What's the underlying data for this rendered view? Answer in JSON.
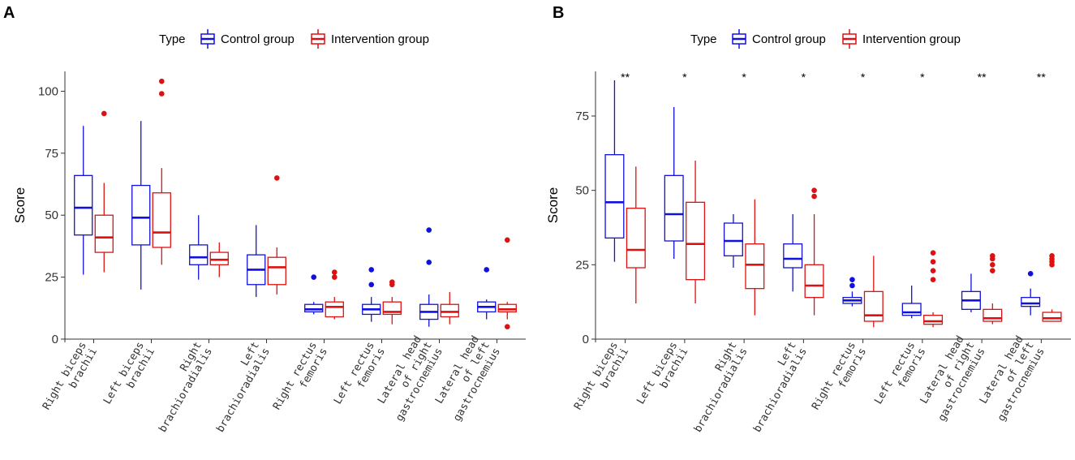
{
  "colors": {
    "control": "#1111dd",
    "intervention": "#dd1111",
    "axis": "#333333"
  },
  "legend": {
    "title": "Type",
    "items": [
      "Control group",
      "Intervention group"
    ]
  },
  "chart_data": [
    {
      "panel": "A",
      "type": "boxplot",
      "ylabel": "Score",
      "ylim": [
        0,
        108
      ],
      "yticks": [
        0,
        25,
        50,
        75,
        100
      ],
      "categories": [
        [
          "Right biceps",
          "brachii"
        ],
        [
          "Left biceps",
          "brachii"
        ],
        [
          "Right",
          "brachioradialis"
        ],
        [
          "Left",
          "brachioradialis"
        ],
        [
          "Right rectus",
          "femoris"
        ],
        [
          "Left rectus",
          "femoris"
        ],
        [
          "Lateral head",
          "of right",
          "gastrocnemius"
        ],
        [
          "Lateral head",
          "of left",
          "gastrocnemius"
        ]
      ],
      "series": [
        {
          "name": "Control group",
          "boxes": [
            {
              "min": 26,
              "q1": 42,
              "median": 53,
              "q3": 66,
              "max": 86,
              "outliers": []
            },
            {
              "min": 20,
              "q1": 38,
              "median": 49,
              "q3": 62,
              "max": 88,
              "outliers": []
            },
            {
              "min": 24,
              "q1": 30,
              "median": 33,
              "q3": 38,
              "max": 50,
              "outliers": []
            },
            {
              "min": 17,
              "q1": 22,
              "median": 28,
              "q3": 34,
              "max": 46,
              "outliers": []
            },
            {
              "min": 10,
              "q1": 11,
              "median": 12,
              "q3": 14,
              "max": 15,
              "outliers": [
                25
              ]
            },
            {
              "min": 7,
              "q1": 10,
              "median": 12,
              "q3": 14,
              "max": 17,
              "outliers": [
                22,
                28
              ]
            },
            {
              "min": 5,
              "q1": 8,
              "median": 11,
              "q3": 14,
              "max": 18,
              "outliers": [
                31,
                44
              ]
            },
            {
              "min": 8,
              "q1": 11,
              "median": 13,
              "q3": 15,
              "max": 16,
              "outliers": [
                28
              ]
            }
          ]
        },
        {
          "name": "Intervention group",
          "boxes": [
            {
              "min": 27,
              "q1": 35,
              "median": 41,
              "q3": 50,
              "max": 63,
              "outliers": [
                91
              ]
            },
            {
              "min": 30,
              "q1": 37,
              "median": 43,
              "q3": 59,
              "max": 69,
              "outliers": [
                99,
                104
              ]
            },
            {
              "min": 25,
              "q1": 30,
              "median": 32,
              "q3": 35,
              "max": 39,
              "outliers": []
            },
            {
              "min": 18,
              "q1": 22,
              "median": 29,
              "q3": 33,
              "max": 37,
              "outliers": [
                65
              ]
            },
            {
              "min": 8,
              "q1": 9,
              "median": 13,
              "q3": 15,
              "max": 17,
              "outliers": [
                25,
                27
              ]
            },
            {
              "min": 6,
              "q1": 10,
              "median": 11,
              "q3": 15,
              "max": 17,
              "outliers": [
                22,
                23
              ]
            },
            {
              "min": 6,
              "q1": 9,
              "median": 11,
              "q3": 14,
              "max": 19,
              "outliers": []
            },
            {
              "min": 8,
              "q1": 11,
              "median": 12,
              "q3": 14,
              "max": 15,
              "outliers": [
                5,
                40
              ]
            }
          ]
        }
      ]
    },
    {
      "panel": "B",
      "type": "boxplot",
      "ylabel": "Score",
      "ylim": [
        0,
        90
      ],
      "yticks": [
        0,
        25,
        50,
        75
      ],
      "categories": [
        [
          "Right biceps",
          "brachii"
        ],
        [
          "Left biceps",
          "brachii"
        ],
        [
          "Right",
          "brachioradialis"
        ],
        [
          "Left",
          "brachioradialis"
        ],
        [
          "Right rectus",
          "femoris"
        ],
        [
          "Left rectus",
          "femoris"
        ],
        [
          "Lateral head",
          "of right",
          "gastrocnemius"
        ],
        [
          "Lateral head",
          "of left",
          "gastrocnemius"
        ]
      ],
      "significance": [
        "**",
        "*",
        "*",
        "*",
        "*",
        "*",
        "**",
        "**"
      ],
      "series": [
        {
          "name": "Control group",
          "boxes": [
            {
              "min": 26,
              "q1": 34,
              "median": 46,
              "q3": 62,
              "max": 87,
              "outliers": []
            },
            {
              "min": 27,
              "q1": 33,
              "median": 42,
              "q3": 55,
              "max": 78,
              "outliers": []
            },
            {
              "min": 24,
              "q1": 28,
              "median": 33,
              "q3": 39,
              "max": 42,
              "outliers": []
            },
            {
              "min": 16,
              "q1": 24,
              "median": 27,
              "q3": 32,
              "max": 42,
              "outliers": []
            },
            {
              "min": 11,
              "q1": 12,
              "median": 13,
              "q3": 14,
              "max": 16,
              "outliers": [
                18,
                20
              ]
            },
            {
              "min": 7,
              "q1": 8,
              "median": 9,
              "q3": 12,
              "max": 18,
              "outliers": []
            },
            {
              "min": 9,
              "q1": 10,
              "median": 13,
              "q3": 16,
              "max": 22,
              "outliers": []
            },
            {
              "min": 8,
              "q1": 11,
              "median": 12,
              "q3": 14,
              "max": 17,
              "outliers": [
                22
              ]
            }
          ]
        },
        {
          "name": "Intervention group",
          "boxes": [
            {
              "min": 12,
              "q1": 24,
              "median": 30,
              "q3": 44,
              "max": 58,
              "outliers": []
            },
            {
              "min": 12,
              "q1": 20,
              "median": 32,
              "q3": 46,
              "max": 60,
              "outliers": []
            },
            {
              "min": 8,
              "q1": 17,
              "median": 25,
              "q3": 32,
              "max": 47,
              "outliers": []
            },
            {
              "min": 8,
              "q1": 14,
              "median": 18,
              "q3": 25,
              "max": 42,
              "outliers": [
                48,
                50
              ]
            },
            {
              "min": 4,
              "q1": 6,
              "median": 8,
              "q3": 16,
              "max": 28,
              "outliers": []
            },
            {
              "min": 4,
              "q1": 5,
              "median": 6,
              "q3": 8,
              "max": 9,
              "outliers": [
                20,
                23,
                26,
                29
              ]
            },
            {
              "min": 5,
              "q1": 6,
              "median": 7,
              "q3": 10,
              "max": 12,
              "outliers": [
                23,
                25,
                27,
                28
              ]
            },
            {
              "min": 6,
              "q1": 6,
              "median": 7,
              "q3": 9,
              "max": 10,
              "outliers": [
                25,
                26,
                27,
                28
              ]
            }
          ]
        }
      ]
    }
  ]
}
